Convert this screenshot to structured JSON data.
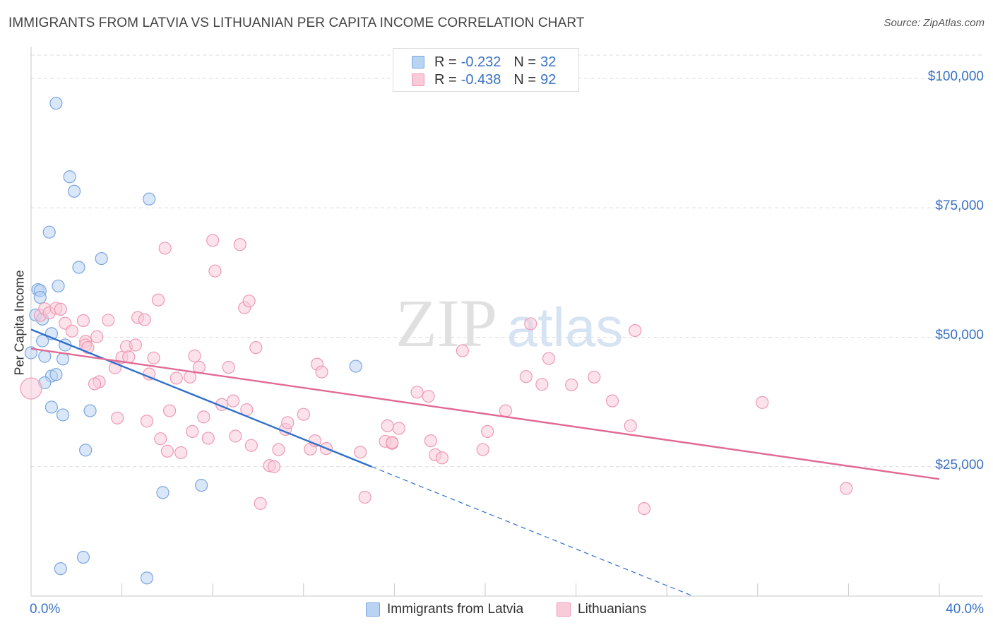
{
  "title": "IMMIGRANTS FROM LATVIA VS LITHUANIAN PER CAPITA INCOME CORRELATION CHART",
  "source": "Source: ZipAtlas.com",
  "watermark": {
    "zip": "ZIP",
    "atlas": "atlas"
  },
  "legend": {
    "rows": [
      {
        "r_label": "R =",
        "r_value": "-0.232",
        "n_label": "N =",
        "n_value": "32",
        "color": "#a8c8f0",
        "border": "#7aa6e0"
      },
      {
        "r_label": "R =",
        "r_value": "-0.438",
        "n_label": "N =",
        "n_value": "92",
        "color": "#f7bfd0",
        "border": "#ee9ab4"
      }
    ]
  },
  "chart_data": {
    "type": "scatter",
    "xlabel": "",
    "ylabel": "Per Capita Income",
    "xlim": [
      0,
      40
    ],
    "ylim": [
      0,
      105000
    ],
    "x_tick_labels": [
      "0.0%",
      "40.0%"
    ],
    "y_ticks": [
      {
        "value": 25000,
        "label": "$25,000"
      },
      {
        "value": 50000,
        "label": "$50,000"
      },
      {
        "value": 75000,
        "label": "$75,000"
      },
      {
        "value": 100000,
        "label": "$100,000"
      }
    ],
    "grid": true,
    "legend_position": "bottom",
    "series": [
      {
        "name": "Immigrants from Latvia",
        "color": "#7aa6e0",
        "fill": "#b9d3f2",
        "trend": {
          "x0": 0,
          "y0": 51500,
          "x1": 15,
          "y1": 25000,
          "dashed_to_x": 29.2,
          "color": "#2d6fcc"
        },
        "points": [
          [
            1.1,
            95200
          ],
          [
            1.7,
            81000
          ],
          [
            1.9,
            78200
          ],
          [
            5.2,
            76700
          ],
          [
            0.8,
            70300
          ],
          [
            3.1,
            65200
          ],
          [
            2.1,
            63500
          ],
          [
            0.3,
            59200
          ],
          [
            0.4,
            59000
          ],
          [
            1.2,
            59900
          ],
          [
            0.4,
            57700
          ],
          [
            0.2,
            54300
          ],
          [
            0.5,
            53500
          ],
          [
            0.5,
            49300
          ],
          [
            0.9,
            50700
          ],
          [
            1.5,
            48500
          ],
          [
            0.0,
            47000
          ],
          [
            0.6,
            46300
          ],
          [
            1.4,
            45800
          ],
          [
            0.9,
            42500
          ],
          [
            1.1,
            42800
          ],
          [
            0.6,
            41200
          ],
          [
            0.9,
            36500
          ],
          [
            1.4,
            35000
          ],
          [
            2.6,
            35800
          ],
          [
            14.3,
            44400
          ],
          [
            2.4,
            28200
          ],
          [
            5.8,
            20000
          ],
          [
            7.5,
            21400
          ],
          [
            2.3,
            7500
          ],
          [
            1.3,
            5300
          ],
          [
            5.1,
            3500
          ]
        ]
      },
      {
        "name": "Lithuanians",
        "color": "#ee9ab4",
        "fill": "#f9cad8",
        "trend": {
          "x0": 0,
          "y0": 47800,
          "x1": 40,
          "y1": 22600,
          "color": "#e06a95"
        },
        "points": [
          [
            0.0,
            40100
          ],
          [
            0.4,
            54200
          ],
          [
            0.6,
            55500
          ],
          [
            0.8,
            54700
          ],
          [
            1.1,
            55600
          ],
          [
            1.3,
            55400
          ],
          [
            1.5,
            52700
          ],
          [
            1.8,
            51200
          ],
          [
            2.3,
            53200
          ],
          [
            2.4,
            49200
          ],
          [
            2.4,
            48500
          ],
          [
            2.5,
            48000
          ],
          [
            2.9,
            50100
          ],
          [
            3.4,
            53300
          ],
          [
            3.0,
            41400
          ],
          [
            2.8,
            41000
          ],
          [
            3.7,
            44100
          ],
          [
            3.8,
            34400
          ],
          [
            4.0,
            46100
          ],
          [
            4.2,
            48200
          ],
          [
            4.3,
            46200
          ],
          [
            4.6,
            48500
          ],
          [
            4.7,
            53800
          ],
          [
            5.0,
            53400
          ],
          [
            5.2,
            42900
          ],
          [
            5.4,
            46000
          ],
          [
            5.6,
            57200
          ],
          [
            5.9,
            67200
          ],
          [
            6.4,
            42100
          ],
          [
            6.1,
            35800
          ],
          [
            5.7,
            30400
          ],
          [
            5.1,
            33800
          ],
          [
            6.6,
            27700
          ],
          [
            7.0,
            42300
          ],
          [
            7.1,
            31800
          ],
          [
            7.2,
            46400
          ],
          [
            7.4,
            44200
          ],
          [
            7.6,
            34600
          ],
          [
            7.8,
            30500
          ],
          [
            8.0,
            68700
          ],
          [
            8.1,
            62800
          ],
          [
            8.4,
            37000
          ],
          [
            8.7,
            44200
          ],
          [
            8.9,
            37700
          ],
          [
            9.0,
            30900
          ],
          [
            9.2,
            67900
          ],
          [
            9.4,
            55700
          ],
          [
            9.6,
            57000
          ],
          [
            9.5,
            36000
          ],
          [
            9.7,
            29100
          ],
          [
            9.9,
            48000
          ],
          [
            10.1,
            17900
          ],
          [
            10.5,
            25200
          ],
          [
            10.7,
            25000
          ],
          [
            10.9,
            28300
          ],
          [
            11.2,
            32200
          ],
          [
            11.3,
            33500
          ],
          [
            12.0,
            35100
          ],
          [
            12.3,
            28400
          ],
          [
            12.5,
            30000
          ],
          [
            12.6,
            44800
          ],
          [
            12.8,
            43300
          ],
          [
            13.0,
            28500
          ],
          [
            14.5,
            27800
          ],
          [
            14.7,
            19100
          ],
          [
            15.6,
            29900
          ],
          [
            15.7,
            32900
          ],
          [
            15.9,
            29500
          ],
          [
            16.2,
            32400
          ],
          [
            17.0,
            39400
          ],
          [
            17.5,
            38600
          ],
          [
            17.6,
            30000
          ],
          [
            17.8,
            27300
          ],
          [
            18.1,
            26700
          ],
          [
            19.0,
            47400
          ],
          [
            19.9,
            28300
          ],
          [
            20.1,
            31800
          ],
          [
            20.9,
            35800
          ],
          [
            21.8,
            42400
          ],
          [
            22.0,
            52600
          ],
          [
            22.5,
            40900
          ],
          [
            22.8,
            45900
          ],
          [
            23.8,
            40800
          ],
          [
            24.8,
            42300
          ],
          [
            25.6,
            37700
          ],
          [
            26.4,
            32900
          ],
          [
            26.6,
            51300
          ],
          [
            27.0,
            16900
          ],
          [
            32.2,
            37400
          ],
          [
            35.9,
            20800
          ],
          [
            15.9,
            29700
          ],
          [
            6.0,
            28000
          ]
        ]
      }
    ]
  }
}
